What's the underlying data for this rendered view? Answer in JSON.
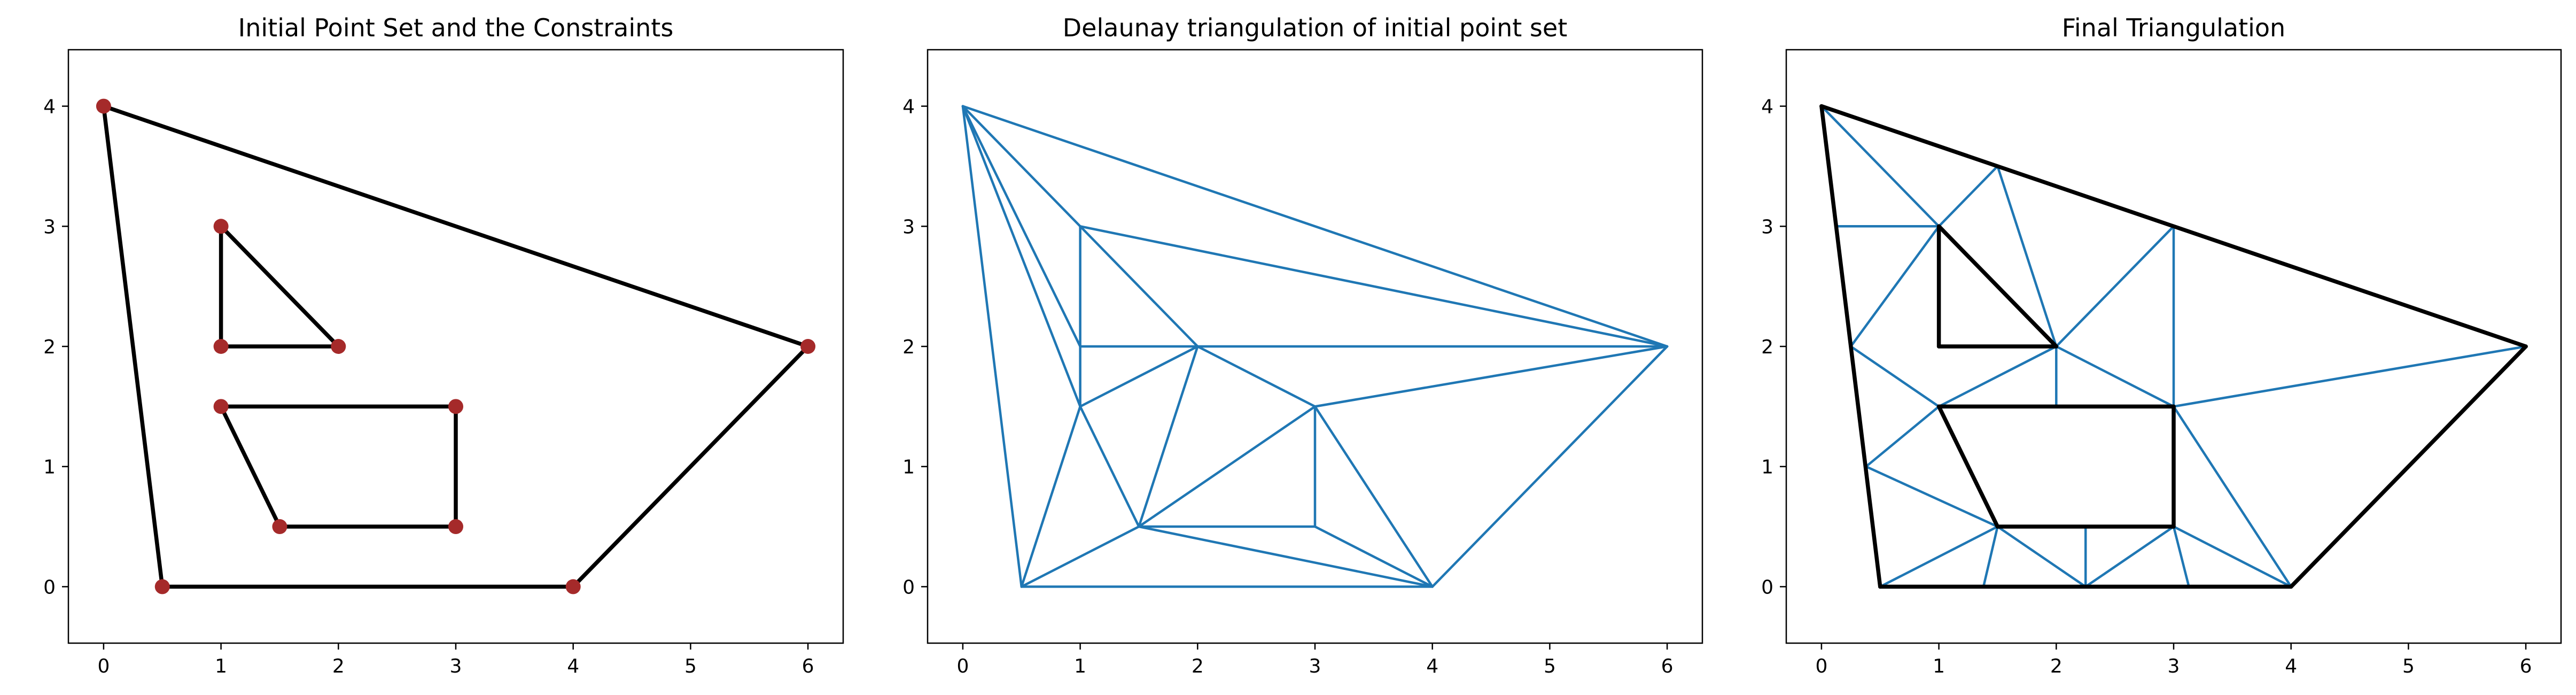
{
  "chart_data": [
    {
      "type": "scatter",
      "title": "Initial Point Set and the Constraints",
      "xlim": [
        -0.3,
        6.3
      ],
      "ylim": [
        -0.47,
        4.47
      ],
      "xticks": [
        0,
        1,
        2,
        3,
        4,
        5,
        6
      ],
      "yticks": [
        0,
        1,
        2,
        3,
        4
      ],
      "grid": false,
      "points": [
        [
          0,
          4
        ],
        [
          1,
          3
        ],
        [
          1,
          2
        ],
        [
          2,
          2
        ],
        [
          1,
          1.5
        ],
        [
          3,
          1.5
        ],
        [
          1.5,
          0.5
        ],
        [
          3,
          0.5
        ],
        [
          0.5,
          0
        ],
        [
          4,
          0
        ],
        [
          6,
          2
        ]
      ],
      "constraint_edges": [
        [
          [
            0,
            4
          ],
          [
            6,
            2
          ]
        ],
        [
          [
            6,
            2
          ],
          [
            4,
            0
          ]
        ],
        [
          [
            4,
            0
          ],
          [
            0.5,
            0
          ]
        ],
        [
          [
            0.5,
            0
          ],
          [
            0,
            4
          ]
        ],
        [
          [
            1,
            3
          ],
          [
            1,
            2
          ]
        ],
        [
          [
            1,
            2
          ],
          [
            2,
            2
          ]
        ],
        [
          [
            2,
            2
          ],
          [
            1,
            3
          ]
        ],
        [
          [
            1,
            1.5
          ],
          [
            3,
            1.5
          ]
        ],
        [
          [
            3,
            1.5
          ],
          [
            3,
            0.5
          ]
        ],
        [
          [
            3,
            0.5
          ],
          [
            1.5,
            0.5
          ]
        ],
        [
          [
            1.5,
            0.5
          ],
          [
            1,
            1.5
          ]
        ]
      ],
      "point_color": "#a52a2a",
      "constraint_color": "#000000"
    },
    {
      "type": "line",
      "title": "Delaunay triangulation of initial point set",
      "xlim": [
        -0.3,
        6.3
      ],
      "ylim": [
        -0.47,
        4.47
      ],
      "xticks": [
        0,
        1,
        2,
        3,
        4,
        5,
        6
      ],
      "yticks": [
        0,
        1,
        2,
        3,
        4
      ],
      "grid": false,
      "edges": [
        [
          [
            0,
            4
          ],
          [
            6,
            2
          ]
        ],
        [
          [
            0,
            4
          ],
          [
            1,
            3
          ]
        ],
        [
          [
            0,
            4
          ],
          [
            1,
            2
          ]
        ],
        [
          [
            0,
            4
          ],
          [
            1,
            1.5
          ]
        ],
        [
          [
            0,
            4
          ],
          [
            0.5,
            0
          ]
        ],
        [
          [
            1,
            3
          ],
          [
            6,
            2
          ]
        ],
        [
          [
            1,
            3
          ],
          [
            1,
            2
          ]
        ],
        [
          [
            1,
            3
          ],
          [
            2,
            2
          ]
        ],
        [
          [
            1,
            2
          ],
          [
            2,
            2
          ]
        ],
        [
          [
            1,
            2
          ],
          [
            1,
            1.5
          ]
        ],
        [
          [
            2,
            2
          ],
          [
            6,
            2
          ]
        ],
        [
          [
            2,
            2
          ],
          [
            1,
            1.5
          ]
        ],
        [
          [
            2,
            2
          ],
          [
            1.5,
            0.5
          ]
        ],
        [
          [
            2,
            2
          ],
          [
            3,
            1.5
          ]
        ],
        [
          [
            3,
            1.5
          ],
          [
            6,
            2
          ]
        ],
        [
          [
            3,
            1.5
          ],
          [
            1.5,
            0.5
          ]
        ],
        [
          [
            3,
            1.5
          ],
          [
            3,
            0.5
          ]
        ],
        [
          [
            3,
            1.5
          ],
          [
            4,
            0
          ]
        ],
        [
          [
            1,
            1.5
          ],
          [
            0.5,
            0
          ]
        ],
        [
          [
            1,
            1.5
          ],
          [
            1.5,
            0.5
          ]
        ],
        [
          [
            1.5,
            0.5
          ],
          [
            0.5,
            0
          ]
        ],
        [
          [
            1.5,
            0.5
          ],
          [
            3,
            0.5
          ]
        ],
        [
          [
            1.5,
            0.5
          ],
          [
            4,
            0
          ]
        ],
        [
          [
            3,
            0.5
          ],
          [
            4,
            0
          ]
        ],
        [
          [
            0.5,
            0
          ],
          [
            4,
            0
          ]
        ],
        [
          [
            4,
            0
          ],
          [
            6,
            2
          ]
        ]
      ],
      "edge_color": "#1f77b4"
    },
    {
      "type": "line",
      "title": "Final Triangulation",
      "xlim": [
        -0.3,
        6.3
      ],
      "ylim": [
        -0.47,
        4.47
      ],
      "xticks": [
        0,
        1,
        2,
        3,
        4,
        5,
        6
      ],
      "yticks": [
        0,
        1,
        2,
        3,
        4
      ],
      "grid": false,
      "edges": [
        [
          [
            0,
            4
          ],
          [
            1,
            3
          ]
        ],
        [
          [
            0.13,
            3
          ],
          [
            1,
            3
          ]
        ],
        [
          [
            1,
            3
          ],
          [
            1.5,
            3.5
          ]
        ],
        [
          [
            1.5,
            3.5
          ],
          [
            2,
            2
          ]
        ],
        [
          [
            0.25,
            2
          ],
          [
            1,
            3
          ]
        ],
        [
          [
            0.25,
            2
          ],
          [
            1,
            1.5
          ]
        ],
        [
          [
            1,
            1.5
          ],
          [
            2,
            2
          ]
        ],
        [
          [
            2,
            2
          ],
          [
            3,
            3
          ]
        ],
        [
          [
            3,
            3
          ],
          [
            3,
            1.5
          ]
        ],
        [
          [
            2,
            2
          ],
          [
            3,
            1.5
          ]
        ],
        [
          [
            2,
            2
          ],
          [
            2,
            1.5
          ]
        ],
        [
          [
            3,
            1.5
          ],
          [
            6,
            2
          ]
        ],
        [
          [
            3,
            1.5
          ],
          [
            4,
            0
          ]
        ],
        [
          [
            0.38,
            1
          ],
          [
            1,
            1.5
          ]
        ],
        [
          [
            0.38,
            1
          ],
          [
            1.5,
            0.5
          ]
        ],
        [
          [
            0.5,
            0
          ],
          [
            1.5,
            0.5
          ]
        ],
        [
          [
            1.5,
            0.5
          ],
          [
            1.38,
            0
          ]
        ],
        [
          [
            1.5,
            0.5
          ],
          [
            2.25,
            0
          ]
        ],
        [
          [
            2.25,
            0.5
          ],
          [
            2.25,
            0
          ]
        ],
        [
          [
            2.25,
            0
          ],
          [
            3,
            0.5
          ]
        ],
        [
          [
            3,
            0.5
          ],
          [
            3.13,
            0
          ]
        ],
        [
          [
            3,
            0.5
          ],
          [
            4,
            0
          ]
        ]
      ],
      "constraint_edges": [
        [
          [
            0,
            4
          ],
          [
            6,
            2
          ]
        ],
        [
          [
            6,
            2
          ],
          [
            4,
            0
          ]
        ],
        [
          [
            4,
            0
          ],
          [
            0.5,
            0
          ]
        ],
        [
          [
            0.5,
            0
          ],
          [
            0,
            4
          ]
        ],
        [
          [
            1,
            3
          ],
          [
            1,
            2
          ]
        ],
        [
          [
            1,
            2
          ],
          [
            2,
            2
          ]
        ],
        [
          [
            2,
            2
          ],
          [
            1,
            3
          ]
        ],
        [
          [
            1,
            1.5
          ],
          [
            3,
            1.5
          ]
        ],
        [
          [
            3,
            1.5
          ],
          [
            3,
            0.5
          ]
        ],
        [
          [
            3,
            0.5
          ],
          [
            1.5,
            0.5
          ]
        ],
        [
          [
            1.5,
            0.5
          ],
          [
            1,
            1.5
          ]
        ]
      ],
      "edge_color": "#1f77b4",
      "constraint_color": "#000000"
    }
  ]
}
